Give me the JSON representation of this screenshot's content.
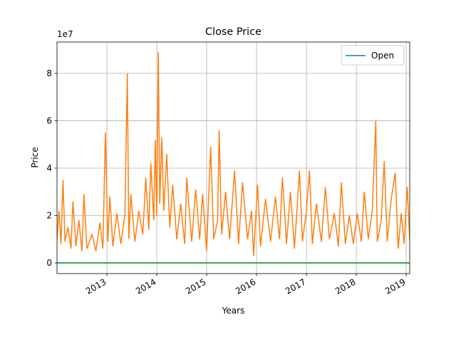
{
  "chart_data": {
    "type": "line",
    "title": "Close Price",
    "x_label": "Years",
    "y_label": "Price",
    "y_offset_label": "1e7",
    "xlim": [
      2012.0,
      2019.07
    ],
    "xticks": [
      2013,
      2014,
      2015,
      2016,
      2017,
      2018,
      2019
    ],
    "ylim": [
      -0.45,
      9.32
    ],
    "yticks": [
      0,
      2,
      4,
      6,
      8
    ],
    "grid": true,
    "legend_position": "upper-right",
    "series": [
      {
        "name": "Open",
        "color": "#1f77b4",
        "x": [
          2012.0,
          2019.07
        ],
        "values": [
          0,
          0
        ]
      },
      {
        "color": "#ff7f0e",
        "x": [
          2012.0,
          2012.04,
          2012.08,
          2012.12,
          2012.16,
          2012.22,
          2012.28,
          2012.32,
          2012.38,
          2012.44,
          2012.5,
          2012.54,
          2012.6,
          2012.7,
          2012.78,
          2012.86,
          2012.92,
          2012.97,
          2013.02,
          2013.06,
          2013.12,
          2013.2,
          2013.28,
          2013.36,
          2013.41,
          2013.44,
          2013.48,
          2013.56,
          2013.64,
          2013.72,
          2013.78,
          2013.84,
          2013.88,
          2013.94,
          2013.97,
          2014.0,
          2014.03,
          2014.06,
          2014.1,
          2014.14,
          2014.2,
          2014.26,
          2014.32,
          2014.4,
          2014.48,
          2014.56,
          2014.6,
          2014.7,
          2014.78,
          2014.86,
          2014.92,
          2015.0,
          2015.04,
          2015.08,
          2015.14,
          2015.22,
          2015.25,
          2015.3,
          2015.38,
          2015.46,
          2015.56,
          2015.64,
          2015.72,
          2015.82,
          2015.9,
          2015.94,
          2016.02,
          2016.08,
          2016.18,
          2016.28,
          2016.38,
          2016.46,
          2016.52,
          2016.6,
          2016.68,
          2016.76,
          2016.86,
          2016.92,
          2017.0,
          2017.06,
          2017.12,
          2017.2,
          2017.3,
          2017.38,
          2017.46,
          2017.56,
          2017.64,
          2017.7,
          2017.78,
          2017.86,
          2017.94,
          2018.02,
          2018.1,
          2018.16,
          2018.24,
          2018.32,
          2018.39,
          2018.42,
          2018.5,
          2018.56,
          2018.62,
          2018.7,
          2018.78,
          2018.84,
          2018.9,
          2018.96,
          2019.02,
          2019.07
        ],
        "values": [
          1.0,
          2.2,
          0.8,
          3.5,
          0.9,
          1.5,
          0.6,
          2.6,
          0.7,
          1.8,
          0.5,
          2.9,
          0.6,
          1.2,
          0.5,
          1.7,
          0.6,
          5.5,
          0.9,
          2.8,
          0.7,
          2.1,
          0.8,
          2.0,
          8.0,
          1.0,
          2.9,
          0.9,
          2.2,
          1.2,
          3.6,
          1.4,
          4.2,
          1.8,
          5.2,
          2.0,
          8.9,
          2.5,
          5.3,
          2.2,
          4.6,
          1.5,
          3.3,
          1.0,
          2.5,
          0.8,
          3.6,
          0.9,
          3.1,
          1.0,
          2.9,
          0.5,
          2.8,
          4.9,
          1.0,
          1.8,
          5.6,
          1.2,
          3.0,
          1.0,
          3.9,
          0.8,
          3.4,
          1.0,
          2.2,
          0.3,
          3.3,
          0.7,
          2.7,
          0.9,
          2.8,
          1.0,
          3.6,
          0.8,
          3.0,
          0.6,
          3.9,
          0.9,
          2.2,
          3.9,
          0.8,
          2.5,
          0.9,
          3.2,
          1.0,
          2.1,
          0.7,
          3.4,
          0.8,
          2.0,
          0.8,
          2.1,
          0.9,
          3.0,
          1.0,
          2.2,
          6.0,
          0.9,
          1.8,
          4.3,
          0.9,
          2.7,
          3.8,
          0.6,
          2.1,
          0.8,
          3.2,
          1.0
        ]
      },
      {
        "color": "#2ca02c",
        "x": [
          2012.0,
          2019.07
        ],
        "values": [
          0,
          0
        ]
      }
    ]
  }
}
